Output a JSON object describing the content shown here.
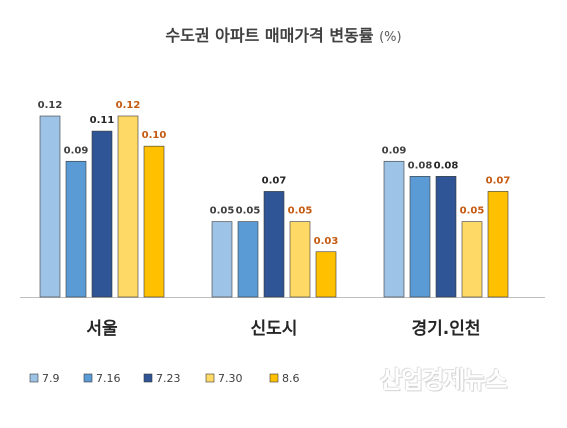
{
  "chart_data": {
    "type": "bar",
    "title": "수도권 아파트 매매가격 변동률",
    "title_unit": "(%)",
    "categories": [
      "서울",
      "신도시",
      "경기.인천"
    ],
    "series": [
      {
        "name": "7.9",
        "values": [
          0.12,
          0.05,
          0.09
        ],
        "color": "#9dc3e6",
        "label_color": "#404040"
      },
      {
        "name": "7.16",
        "values": [
          0.09,
          0.05,
          0.08
        ],
        "color": "#5b9bd5",
        "label_color": "#404040"
      },
      {
        "name": "7.23",
        "values": [
          0.11,
          0.07,
          0.08
        ],
        "color": "#2f5597",
        "label_color": "#262626"
      },
      {
        "name": "7.30",
        "values": [
          0.12,
          0.05,
          0.05
        ],
        "color": "#ffd966",
        "label_color": "#c55a11"
      },
      {
        "name": "8.6",
        "values": [
          0.1,
          0.03,
          0.07
        ],
        "color": "#ffc000",
        "label_color": "#c55a11"
      }
    ],
    "value_labels": [
      [
        "0.12",
        "0.05",
        "0.09"
      ],
      [
        "0.09",
        "0.05",
        "0.08"
      ],
      [
        "0.11",
        "0.07",
        "0.08"
      ],
      [
        "0.12",
        "0.05",
        "0.05"
      ],
      [
        "0.10",
        "0.03",
        "0.07"
      ]
    ],
    "ylim": [
      0,
      0.12
    ],
    "grid": false,
    "legend_position": "bottom-left"
  },
  "watermark": "산업경제뉴스"
}
